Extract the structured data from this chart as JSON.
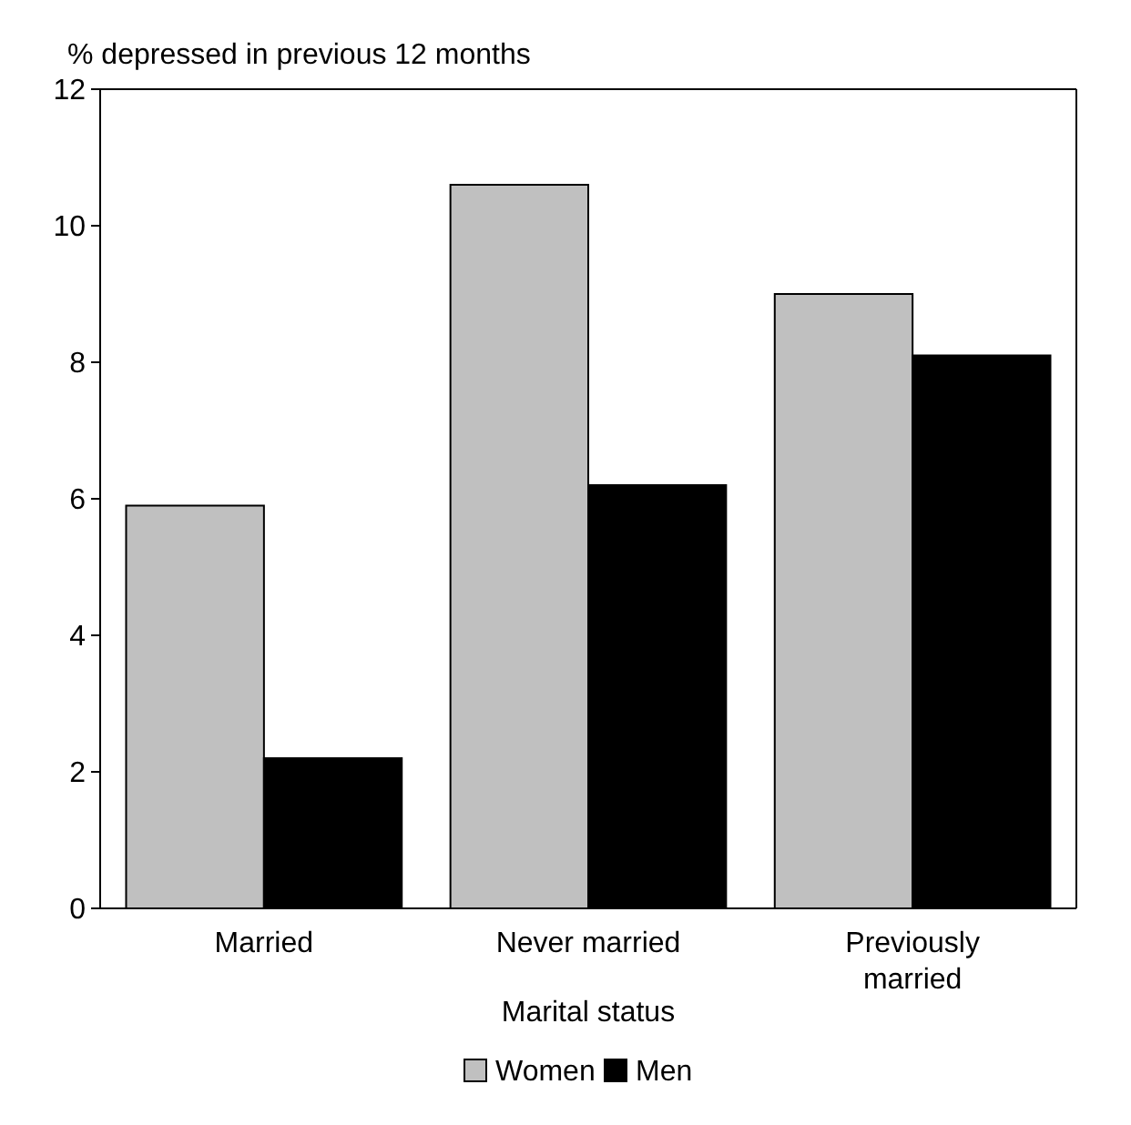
{
  "chart_data": {
    "type": "bar",
    "ylabel": "% depressed in previous 12 months",
    "xlabel": "Marital status",
    "categories": [
      "Married",
      "Never married",
      "Previously married"
    ],
    "series": [
      {
        "name": "Women",
        "color": "#c0c0c0",
        "values": [
          5.9,
          10.6,
          9.0
        ]
      },
      {
        "name": "Men",
        "color": "#000000",
        "values": [
          2.2,
          6.2,
          8.1
        ]
      }
    ],
    "ylim": [
      0,
      12
    ],
    "yticks": [
      0,
      2,
      4,
      6,
      8,
      10,
      12
    ],
    "grid": false,
    "legend": "bottom"
  }
}
